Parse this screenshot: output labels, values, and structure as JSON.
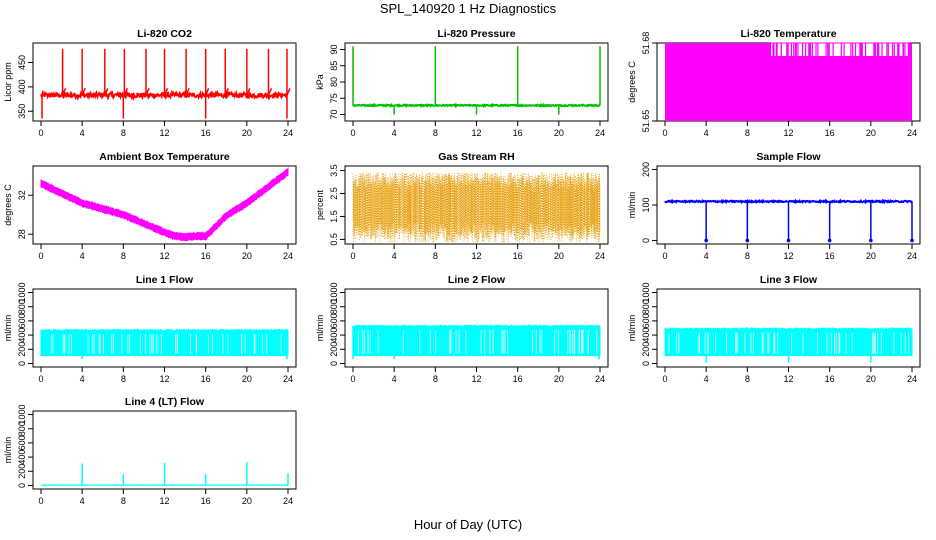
{
  "page": {
    "title": "SPL_140920  1 Hz Diagnostics",
    "xlabel": "Hour of Day (UTC)"
  },
  "chart_data": [
    {
      "type": "line",
      "title": "Li-820 CO2",
      "xlabel": "",
      "ylabel": "Licor ppm",
      "color": "#ff0000",
      "xlim": [
        0,
        24
      ],
      "ylim": [
        330,
        490
      ],
      "xticks": [
        0,
        4,
        8,
        12,
        16,
        20,
        24
      ],
      "yticks": [
        350,
        400,
        450
      ],
      "series": [
        {
          "baseline": 383,
          "noise": 5,
          "spike_times": [
            2.1,
            4.0,
            6.2,
            8.1,
            10.2,
            12.0,
            14.1,
            16.0,
            17.9,
            20.0,
            22.1,
            23.9
          ],
          "spike_to": 478,
          "dip_times": [
            0.1,
            8.0,
            16.0,
            23.9
          ],
          "dip_to": 335
        }
      ]
    },
    {
      "type": "line",
      "title": "Li-820 Pressure",
      "xlabel": "",
      "ylabel": "kPa",
      "color": "#00c000",
      "xlim": [
        0,
        24
      ],
      "ylim": [
        68,
        92
      ],
      "xticks": [
        0,
        4,
        8,
        12,
        16,
        20,
        24
      ],
      "yticks": [
        70,
        75,
        80,
        85,
        90
      ],
      "series": [
        {
          "baseline": 72.8,
          "noise": 0.2,
          "spike_times": [
            0.0,
            8.0,
            16.0,
            24.0
          ],
          "spike_to": 91,
          "dip_times": [
            4.0,
            12.0,
            20.0
          ],
          "dip_to": 70
        }
      ]
    },
    {
      "type": "area",
      "title": "Li-820 Temperature",
      "xlabel": "",
      "ylabel": "degrees C",
      "color": "#ff00ff",
      "xlim": [
        0,
        24
      ],
      "ylim": [
        51.65,
        51.68
      ],
      "xticks": [
        0,
        4,
        8,
        12,
        16,
        20,
        24
      ],
      "yticks": [
        51.65,
        51.68
      ],
      "series": [
        {
          "high": 51.68,
          "low": 51.65,
          "mid": 51.675,
          "gap_start": 10.3,
          "gap_end": 23.7
        }
      ]
    },
    {
      "type": "line",
      "title": "Ambient Box Temperature",
      "xlabel": "",
      "ylabel": "degrees C",
      "color": "#ff00ff",
      "xlim": [
        0,
        24
      ],
      "ylim": [
        27,
        35
      ],
      "xticks": [
        0,
        4,
        8,
        12,
        16,
        20,
        24
      ],
      "yticks": [
        28,
        32
      ],
      "series": [
        {
          "hours": [
            0,
            2,
            4,
            6,
            8,
            10,
            12,
            13,
            14,
            15,
            16,
            17,
            18,
            20,
            22,
            24
          ],
          "values": [
            33.2,
            32.2,
            31.2,
            30.6,
            30.0,
            29.1,
            28.2,
            27.8,
            27.7,
            27.8,
            27.8,
            28.8,
            29.9,
            31.2,
            32.8,
            34.4
          ],
          "band": 0.5
        }
      ]
    },
    {
      "type": "scatter",
      "title": "Gas Stream RH",
      "xlabel": "",
      "ylabel": "percent",
      "color": "#e69a00",
      "xlim": [
        0,
        24
      ],
      "ylim": [
        0.3,
        3.7
      ],
      "xticks": [
        0,
        4,
        8,
        12,
        16,
        20,
        24
      ],
      "yticks": [
        0.5,
        1.5,
        2.5,
        3.5
      ],
      "series": [
        {
          "min": 0.4,
          "max": 3.4,
          "center": 1.95
        }
      ]
    },
    {
      "type": "line",
      "title": "Sample Flow",
      "xlabel": "",
      "ylabel": "ml/min",
      "color": "#0000ff",
      "xlim": [
        0,
        24
      ],
      "ylim": [
        -10,
        210
      ],
      "xticks": [
        0,
        4,
        8,
        12,
        16,
        20,
        24
      ],
      "yticks": [
        0,
        100,
        200
      ],
      "series": [
        {
          "baseline": 110,
          "noise": 2,
          "dip_times": [
            4.0,
            8.0,
            12.0,
            16.0,
            20.0,
            24.0
          ],
          "dip_to": 0
        }
      ]
    },
    {
      "type": "area",
      "title": "Line 1 Flow",
      "xlabel": "",
      "ylabel": "ml/min",
      "color": "#00ffff",
      "xlim": [
        0,
        24
      ],
      "ylim": [
        -50,
        1050
      ],
      "xticks": [
        0,
        4,
        8,
        12,
        16,
        20,
        24
      ],
      "yticks": [
        0,
        200,
        400,
        600,
        800,
        1000
      ],
      "series": [
        {
          "high": 470,
          "low": 110,
          "dip_times": [
            4.0,
            23.9
          ],
          "dip_to": 60
        }
      ]
    },
    {
      "type": "area",
      "title": "Line 2 Flow",
      "xlabel": "",
      "ylabel": "ml/min",
      "color": "#00ffff",
      "xlim": [
        0,
        24
      ],
      "ylim": [
        -50,
        1050
      ],
      "xticks": [
        0,
        4,
        8,
        12,
        16,
        20,
        24
      ],
      "yticks": [
        0,
        200,
        400,
        600,
        800,
        1000
      ],
      "series": [
        {
          "high": 530,
          "low": 110,
          "dip_times": [
            0.0,
            4.0,
            23.9
          ],
          "dip_to": 60
        }
      ]
    },
    {
      "type": "area",
      "title": "Line 3 Flow",
      "xlabel": "",
      "ylabel": "ml/min",
      "color": "#00ffff",
      "xlim": [
        0,
        24
      ],
      "ylim": [
        -50,
        1050
      ],
      "xticks": [
        0,
        4,
        8,
        12,
        16,
        20,
        24
      ],
      "yticks": [
        0,
        200,
        400,
        600,
        800,
        1000
      ],
      "series": [
        {
          "high": 490,
          "low": 110,
          "dip_times": [
            4.0,
            12.0,
            20.0
          ],
          "dip_to": 10
        }
      ]
    },
    {
      "type": "line",
      "title": "Line 4 (LT) Flow",
      "xlabel": "",
      "ylabel": "ml/min",
      "color": "#00ffff",
      "xlim": [
        0,
        24
      ],
      "ylim": [
        -50,
        1050
      ],
      "xticks": [
        0,
        4,
        8,
        12,
        16,
        20,
        24
      ],
      "yticks": [
        0,
        200,
        400,
        600,
        800,
        1000
      ],
      "series": [
        {
          "baseline": 5,
          "noise": 1,
          "spike_times": [
            4.0,
            8.0,
            12.0,
            16.0,
            20.0,
            24.0
          ],
          "spike_values": [
            310,
            160,
            320,
            160,
            330,
            170
          ]
        }
      ]
    }
  ]
}
